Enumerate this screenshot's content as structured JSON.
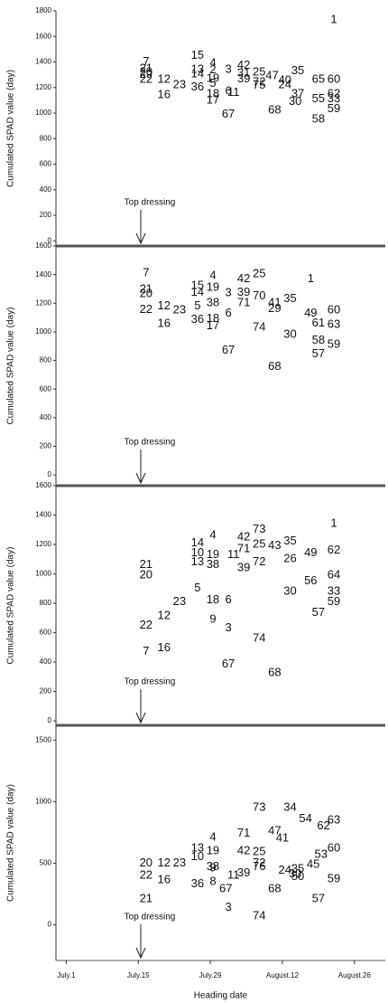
{
  "chart_data": [
    {
      "type": "scatter",
      "y_label": "Cumulated SPAD value (day)",
      "annotation": "Top dressing",
      "xlim": [
        -2,
        62
      ],
      "ylim": [
        -40,
        1800
      ],
      "yticks": [
        0,
        200,
        400,
        600,
        800,
        1000,
        1200,
        1400,
        1600,
        1800
      ],
      "points": [
        {
          "label": "1",
          "x": 52,
          "y": 1730
        },
        {
          "label": "7",
          "x": 15.5,
          "y": 1400
        },
        {
          "label": "21",
          "x": 15.5,
          "y": 1345
        },
        {
          "label": "20",
          "x": 15.5,
          "y": 1320
        },
        {
          "label": "29",
          "x": 15.5,
          "y": 1300
        },
        {
          "label": "22",
          "x": 15.5,
          "y": 1260
        },
        {
          "label": "12",
          "x": 19,
          "y": 1260
        },
        {
          "label": "23",
          "x": 22,
          "y": 1220
        },
        {
          "label": "16",
          "x": 19,
          "y": 1140
        },
        {
          "label": "15",
          "x": 25.5,
          "y": 1450
        },
        {
          "label": "4",
          "x": 28.5,
          "y": 1390
        },
        {
          "label": "2",
          "x": 28.5,
          "y": 1335
        },
        {
          "label": "13",
          "x": 25.5,
          "y": 1340
        },
        {
          "label": "14",
          "x": 25.5,
          "y": 1305
        },
        {
          "label": "19",
          "x": 28.5,
          "y": 1270
        },
        {
          "label": "36",
          "x": 25.5,
          "y": 1200
        },
        {
          "label": "5",
          "x": 28.5,
          "y": 1230
        },
        {
          "label": "18",
          "x": 28.5,
          "y": 1150
        },
        {
          "label": "17",
          "x": 28.5,
          "y": 1100
        },
        {
          "label": "6",
          "x": 31.5,
          "y": 1170
        },
        {
          "label": "11",
          "x": 32.5,
          "y": 1160
        },
        {
          "label": "3",
          "x": 31.5,
          "y": 1340
        },
        {
          "label": "67",
          "x": 31.5,
          "y": 990
        },
        {
          "label": "42",
          "x": 34.5,
          "y": 1370
        },
        {
          "label": "31",
          "x": 34.5,
          "y": 1310
        },
        {
          "label": "39",
          "x": 34.5,
          "y": 1265
        },
        {
          "label": "25",
          "x": 37.5,
          "y": 1320
        },
        {
          "label": "47",
          "x": 40,
          "y": 1290
        },
        {
          "label": "35",
          "x": 45,
          "y": 1330
        },
        {
          "label": "72",
          "x": 37.5,
          "y": 1240
        },
        {
          "label": "75",
          "x": 37.5,
          "y": 1215
        },
        {
          "label": "24",
          "x": 42.5,
          "y": 1220
        },
        {
          "label": "40",
          "x": 42.5,
          "y": 1255
        },
        {
          "label": "68",
          "x": 40.5,
          "y": 1020
        },
        {
          "label": "65",
          "x": 49,
          "y": 1260
        },
        {
          "label": "60",
          "x": 52,
          "y": 1260
        },
        {
          "label": "62",
          "x": 52,
          "y": 1150
        },
        {
          "label": "37",
          "x": 45,
          "y": 1150
        },
        {
          "label": "30",
          "x": 44.5,
          "y": 1090
        },
        {
          "label": "55",
          "x": 49,
          "y": 1110
        },
        {
          "label": "33",
          "x": 52,
          "y": 1110
        },
        {
          "label": "59",
          "x": 52,
          "y": 1030
        },
        {
          "label": "58",
          "x": 49,
          "y": 950
        }
      ]
    },
    {
      "type": "scatter",
      "y_label": "Cumulated SPAD value (day)",
      "annotation": "Top dressing",
      "xlim": [
        -2,
        62
      ],
      "ylim": [
        -75,
        1600
      ],
      "yticks": [
        0,
        200,
        400,
        600,
        800,
        1000,
        1200,
        1400,
        1600
      ],
      "points": [
        {
          "label": "7",
          "x": 15.5,
          "y": 1410
        },
        {
          "label": "21",
          "x": 15.5,
          "y": 1295
        },
        {
          "label": "20",
          "x": 15.5,
          "y": 1265
        },
        {
          "label": "22",
          "x": 15.5,
          "y": 1155
        },
        {
          "label": "12",
          "x": 19,
          "y": 1180
        },
        {
          "label": "23",
          "x": 22,
          "y": 1150
        },
        {
          "label": "16",
          "x": 19,
          "y": 1055
        },
        {
          "label": "15",
          "x": 25.5,
          "y": 1320
        },
        {
          "label": "14",
          "x": 25.5,
          "y": 1275
        },
        {
          "label": "5",
          "x": 25.5,
          "y": 1180
        },
        {
          "label": "36",
          "x": 25.5,
          "y": 1085
        },
        {
          "label": "4",
          "x": 28.5,
          "y": 1390
        },
        {
          "label": "19",
          "x": 28.5,
          "y": 1310
        },
        {
          "label": "38",
          "x": 28.5,
          "y": 1200
        },
        {
          "label": "18",
          "x": 28.5,
          "y": 1090
        },
        {
          "label": "17",
          "x": 28.5,
          "y": 1040
        },
        {
          "label": "3",
          "x": 31.5,
          "y": 1270
        },
        {
          "label": "39",
          "x": 34.5,
          "y": 1275
        },
        {
          "label": "71",
          "x": 34.5,
          "y": 1200
        },
        {
          "label": "6",
          "x": 31.5,
          "y": 1130
        },
        {
          "label": "67",
          "x": 31.5,
          "y": 870
        },
        {
          "label": "42",
          "x": 34.5,
          "y": 1370
        },
        {
          "label": "25",
          "x": 37.5,
          "y": 1405
        },
        {
          "label": "70",
          "x": 37.5,
          "y": 1250
        },
        {
          "label": "74",
          "x": 37.5,
          "y": 1030
        },
        {
          "label": "41",
          "x": 40.5,
          "y": 1200
        },
        {
          "label": "29",
          "x": 40.5,
          "y": 1160
        },
        {
          "label": "35",
          "x": 43.5,
          "y": 1230
        },
        {
          "label": "30",
          "x": 43.5,
          "y": 980
        },
        {
          "label": "68",
          "x": 40.5,
          "y": 756
        },
        {
          "label": "1",
          "x": 47.5,
          "y": 1370
        },
        {
          "label": "49",
          "x": 47.5,
          "y": 1130
        },
        {
          "label": "60",
          "x": 52,
          "y": 1150
        },
        {
          "label": "61",
          "x": 49,
          "y": 1060
        },
        {
          "label": "63",
          "x": 52,
          "y": 1050
        },
        {
          "label": "58",
          "x": 49,
          "y": 940
        },
        {
          "label": "57",
          "x": 49,
          "y": 845
        },
        {
          "label": "59",
          "x": 52,
          "y": 910
        }
      ]
    },
    {
      "type": "scatter",
      "y_label": "Cumulated SPAD value (day)",
      "annotation": "Top dressing",
      "xlim": [
        -2,
        62
      ],
      "ylim": [
        -30,
        1600
      ],
      "yticks": [
        0,
        200,
        400,
        600,
        800,
        1000,
        1200,
        1400,
        1600
      ],
      "points": [
        {
          "label": "1",
          "x": 52,
          "y": 1340
        },
        {
          "label": "14",
          "x": 25.5,
          "y": 1210
        },
        {
          "label": "21",
          "x": 15.5,
          "y": 1060
        },
        {
          "label": "20",
          "x": 15.5,
          "y": 990
        },
        {
          "label": "22",
          "x": 15.5,
          "y": 650
        },
        {
          "label": "7",
          "x": 15.5,
          "y": 470
        },
        {
          "label": "16",
          "x": 19,
          "y": 495
        },
        {
          "label": "12",
          "x": 19,
          "y": 715
        },
        {
          "label": "23",
          "x": 22,
          "y": 810
        },
        {
          "label": "13",
          "x": 25.5,
          "y": 1080
        },
        {
          "label": "10",
          "x": 25.5,
          "y": 1140
        },
        {
          "label": "5",
          "x": 25.5,
          "y": 900
        },
        {
          "label": "4",
          "x": 28.5,
          "y": 1260
        },
        {
          "label": "19",
          "x": 28.5,
          "y": 1130
        },
        {
          "label": "38",
          "x": 28.5,
          "y": 1060
        },
        {
          "label": "18",
          "x": 28.5,
          "y": 820
        },
        {
          "label": "9",
          "x": 28.5,
          "y": 690
        },
        {
          "label": "3",
          "x": 31.5,
          "y": 630
        },
        {
          "label": "6",
          "x": 31.5,
          "y": 820
        },
        {
          "label": "67",
          "x": 31.5,
          "y": 385
        },
        {
          "label": "11",
          "x": 32.5,
          "y": 1130
        },
        {
          "label": "42",
          "x": 34.5,
          "y": 1250
        },
        {
          "label": "73",
          "x": 37.5,
          "y": 1300
        },
        {
          "label": "71",
          "x": 34.5,
          "y": 1170
        },
        {
          "label": "39",
          "x": 34.5,
          "y": 1040
        },
        {
          "label": "25",
          "x": 37.5,
          "y": 1200
        },
        {
          "label": "72",
          "x": 37.5,
          "y": 1080
        },
        {
          "label": "74",
          "x": 37.5,
          "y": 560
        },
        {
          "label": "43",
          "x": 40.5,
          "y": 1190
        },
        {
          "label": "68",
          "x": 40.5,
          "y": 325
        },
        {
          "label": "35",
          "x": 43.5,
          "y": 1220
        },
        {
          "label": "26",
          "x": 43.5,
          "y": 1100
        },
        {
          "label": "30",
          "x": 43.5,
          "y": 880
        },
        {
          "label": "49",
          "x": 47.5,
          "y": 1140
        },
        {
          "label": "56",
          "x": 47.5,
          "y": 950
        },
        {
          "label": "62",
          "x": 52,
          "y": 1160
        },
        {
          "label": "64",
          "x": 52,
          "y": 990
        },
        {
          "label": "33",
          "x": 52,
          "y": 880
        },
        {
          "label": "59",
          "x": 52,
          "y": 810
        },
        {
          "label": "57",
          "x": 49,
          "y": 735
        }
      ]
    },
    {
      "type": "scatter",
      "y_label": "Cumulated SPAD value (day)",
      "annotation": "Top dressing",
      "x_label": "Heading date",
      "xlim": [
        -2,
        62
      ],
      "ylim": [
        -290,
        1620
      ],
      "yticks": [
        0,
        500,
        1000,
        1500
      ],
      "xticks": [
        {
          "value": 0,
          "label": "July.1"
        },
        {
          "value": 14,
          "label": "July.15"
        },
        {
          "value": 28,
          "label": "July.29"
        },
        {
          "value": 42,
          "label": "August.12"
        },
        {
          "value": 56,
          "label": "August.26"
        }
      ],
      "points": [
        {
          "label": "73",
          "x": 37.5,
          "y": 950
        },
        {
          "label": "34",
          "x": 43.5,
          "y": 950
        },
        {
          "label": "54",
          "x": 46.5,
          "y": 860
        },
        {
          "label": "63",
          "x": 52,
          "y": 850
        },
        {
          "label": "62",
          "x": 50,
          "y": 800
        },
        {
          "label": "71",
          "x": 34.5,
          "y": 740
        },
        {
          "label": "47",
          "x": 40.5,
          "y": 760
        },
        {
          "label": "4",
          "x": 28.5,
          "y": 710
        },
        {
          "label": "13",
          "x": 25.5,
          "y": 620
        },
        {
          "label": "19",
          "x": 28.5,
          "y": 600
        },
        {
          "label": "42",
          "x": 34.5,
          "y": 600
        },
        {
          "label": "25",
          "x": 37.5,
          "y": 590
        },
        {
          "label": "41",
          "x": 42,
          "y": 700
        },
        {
          "label": "60",
          "x": 52,
          "y": 620
        },
        {
          "label": "10",
          "x": 25.5,
          "y": 550
        },
        {
          "label": "38",
          "x": 28.5,
          "y": 470
        },
        {
          "label": "72",
          "x": 37.5,
          "y": 500
        },
        {
          "label": "76",
          "x": 37.5,
          "y": 470
        },
        {
          "label": "24",
          "x": 42.5,
          "y": 440
        },
        {
          "label": "35",
          "x": 45,
          "y": 450
        },
        {
          "label": "50",
          "x": 45,
          "y": 390
        },
        {
          "label": "11",
          "x": 32.5,
          "y": 400
        },
        {
          "label": "8",
          "x": 28.5,
          "y": 350
        },
        {
          "label": "20",
          "x": 15.5,
          "y": 500
        },
        {
          "label": "12",
          "x": 19,
          "y": 500
        },
        {
          "label": "23",
          "x": 22,
          "y": 500
        },
        {
          "label": "22",
          "x": 15.5,
          "y": 400
        },
        {
          "label": "16",
          "x": 19,
          "y": 365
        },
        {
          "label": "21",
          "x": 15.5,
          "y": 210
        },
        {
          "label": "36",
          "x": 25.5,
          "y": 330
        },
        {
          "label": "9",
          "x": 28.5,
          "y": 460
        },
        {
          "label": "67",
          "x": 31,
          "y": 290
        },
        {
          "label": "3",
          "x": 31.5,
          "y": 140
        },
        {
          "label": "74",
          "x": 37.5,
          "y": 70
        },
        {
          "label": "39",
          "x": 34.5,
          "y": 420
        },
        {
          "label": "68",
          "x": 40.5,
          "y": 290
        },
        {
          "label": "30",
          "x": 44.5,
          "y": 410
        },
        {
          "label": "45",
          "x": 48,
          "y": 490
        },
        {
          "label": "53",
          "x": 49.5,
          "y": 570
        },
        {
          "label": "57",
          "x": 49,
          "y": 210
        },
        {
          "label": "59",
          "x": 52,
          "y": 370
        }
      ]
    }
  ]
}
